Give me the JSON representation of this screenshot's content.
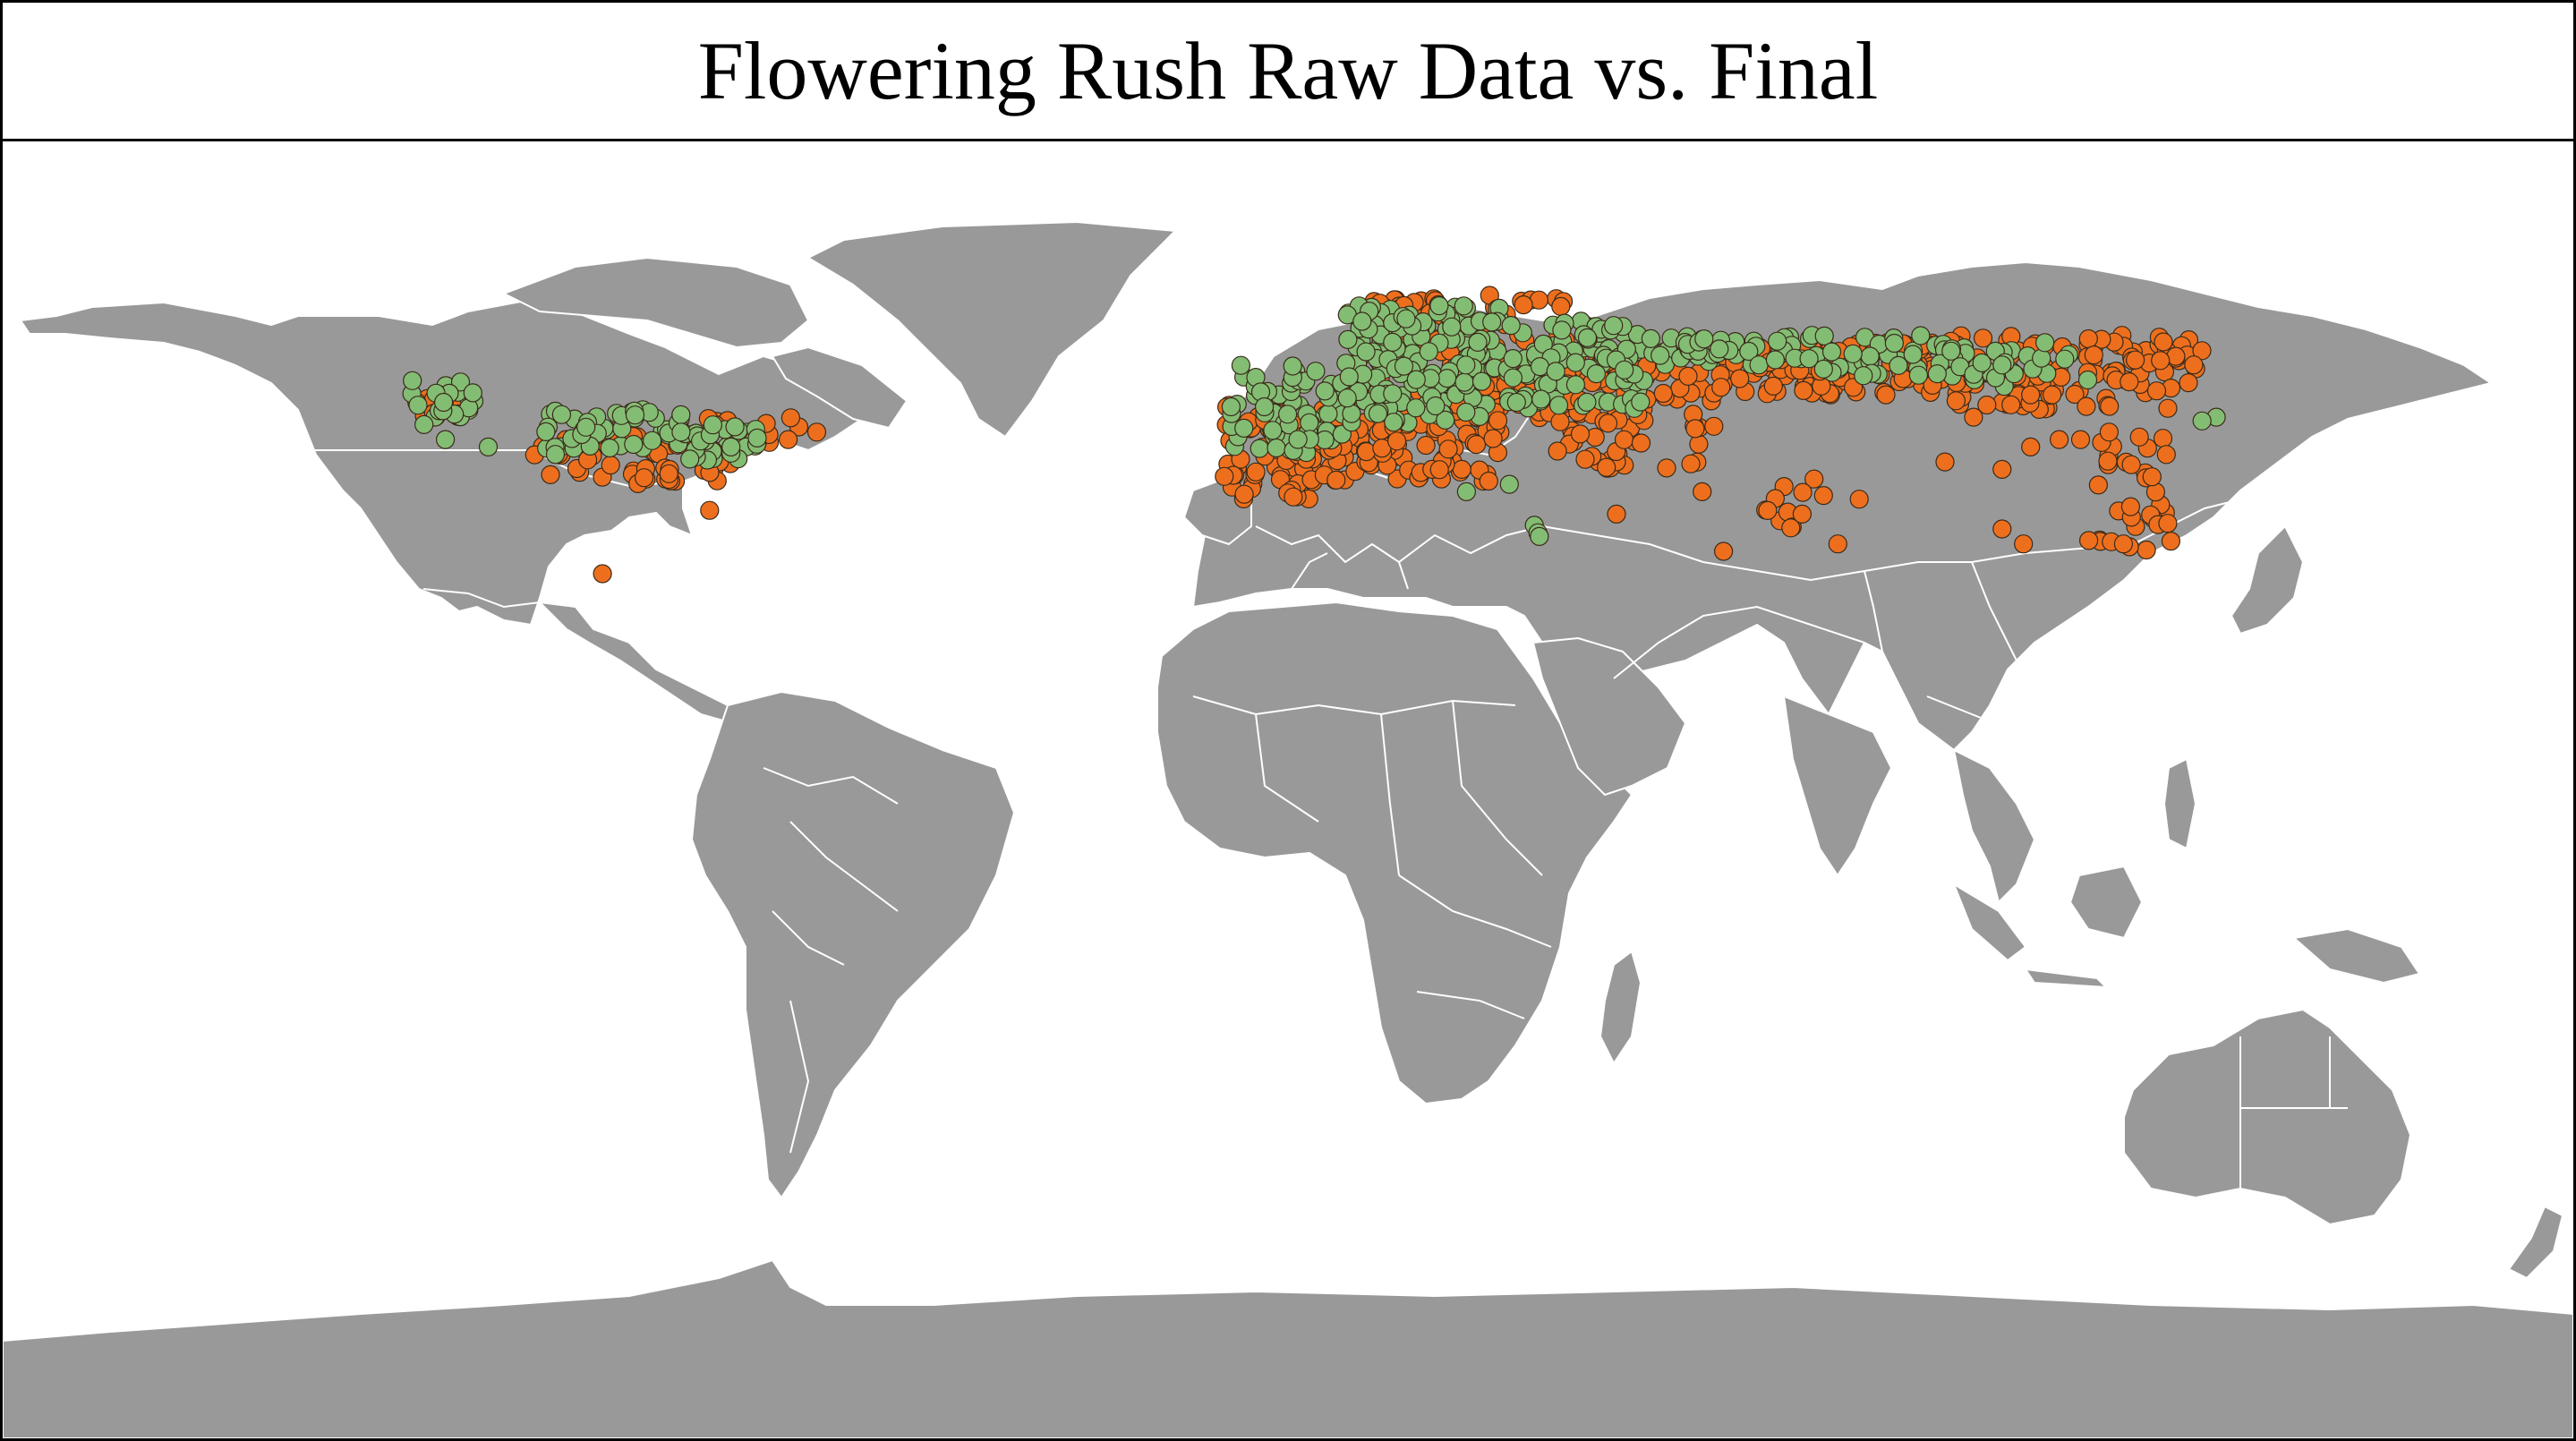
{
  "title": "Flowering Rush Raw Data vs. Final",
  "colors": {
    "land": "#999999",
    "borders": "#ffffff",
    "ocean": "#ffffff",
    "raw_points": "#ed6f1d",
    "final_points": "#83bd74",
    "point_outline": "#3a2a1a"
  },
  "map": {
    "projection": "plate-carree",
    "extent": {
      "lon": [
        -180,
        180
      ],
      "lat": [
        -90,
        84
      ]
    },
    "layers": [
      {
        "name": "Raw Data",
        "color_key": "raw_points"
      },
      {
        "name": "Final",
        "color_key": "final_points"
      }
    ]
  },
  "chart_data": {
    "type": "scatter",
    "x_unit": "longitude (degrees)",
    "y_unit": "latitude (degrees)",
    "series": [
      {
        "color_key": "raw_points",
        "clusters": [
          {
            "lon": [
              -121,
              -116
            ],
            "lat": [
              47,
              50
            ],
            "count": 10
          },
          {
            "lon": [
              -106,
              -78
            ],
            "lat": [
              38,
              47
            ],
            "count": 45
          },
          {
            "lon": [
              -75,
              -68
            ],
            "lat": [
              43,
              47
            ],
            "count": 6
          },
          {
            "lon": [
              -92,
              -86
            ],
            "lat": [
              38,
              41
            ],
            "count": 8
          },
          {
            "lon": [
              -9,
              5
            ],
            "lat": [
              36,
              49
            ],
            "count": 70
          },
          {
            "lon": [
              5,
              30
            ],
            "lat": [
              38,
              50
            ],
            "count": 110
          },
          {
            "lon": [
              10,
              40
            ],
            "lat": [
              48,
              64
            ],
            "count": 120
          },
          {
            "lon": [
              35,
              60
            ],
            "lat": [
              40,
              56
            ],
            "count": 90
          },
          {
            "lon": [
              60,
              92
            ],
            "lat": [
              50,
              57
            ],
            "count": 110
          },
          {
            "lon": [
              92,
              128
            ],
            "lat": [
              48,
              58
            ],
            "count": 110
          },
          {
            "lon": [
              112,
              124
            ],
            "lat": [
              28,
              45
            ],
            "count": 30
          },
          {
            "lon": [
              66,
              74
            ],
            "lat": [
              32,
              40
            ],
            "count": 10
          }
        ],
        "points": [
          [
            -81,
            34.5
          ],
          [
            -96,
            26
          ],
          [
            -122,
            49
          ],
          [
            -70,
            44
          ],
          [
            -66,
            45
          ],
          [
            61,
            29
          ],
          [
            58,
            37
          ],
          [
            46,
            34
          ],
          [
            77,
            30
          ],
          [
            75,
            36.5
          ],
          [
            72,
            34
          ],
          [
            80,
            36
          ],
          [
            92,
            41
          ],
          [
            96,
            47
          ],
          [
            100,
            40
          ],
          [
            104,
            43
          ],
          [
            100,
            32
          ],
          [
            103,
            30
          ],
          [
            108,
            44
          ],
          [
            111,
            44
          ],
          [
            104,
            50
          ],
          [
            107,
            50
          ],
          [
            101,
            53
          ],
          [
            112,
            53
          ],
          [
            117,
            30
          ],
          [
            118,
            35
          ],
          [
            121,
            39
          ],
          [
            123,
            42
          ],
          [
            115,
            45
          ]
        ]
      },
      {
        "color_key": "final_points",
        "clusters": [
          {
            "lon": [
              -123,
              -114
            ],
            "lat": [
              47,
              52
            ],
            "count": 22
          },
          {
            "lon": [
              -104,
              -84
            ],
            "lat": [
              42,
              48
            ],
            "count": 45
          },
          {
            "lon": [
              -84,
              -74
            ],
            "lat": [
              41,
              46
            ],
            "count": 35
          },
          {
            "lon": [
              -8,
              8
            ],
            "lat": [
              42,
              54
            ],
            "count": 70
          },
          {
            "lon": [
              8,
              30
            ],
            "lat": [
              46,
              62
            ],
            "count": 160
          },
          {
            "lon": [
              30,
              50
            ],
            "lat": [
              48,
              60
            ],
            "count": 100
          },
          {
            "lon": [
              50,
              75
            ],
            "lat": [
              54,
              58
            ],
            "count": 50
          },
          {
            "lon": [
              75,
              95
            ],
            "lat": [
              52,
              58
            ],
            "count": 40
          },
          {
            "lon": [
              95,
              110
            ],
            "lat": [
              51,
              56
            ],
            "count": 20
          }
        ],
        "points": [
          [
            -112,
            43
          ],
          [
            -118,
            44
          ],
          [
            -121,
            46
          ],
          [
            -85,
            45
          ],
          [
            -78,
            43
          ],
          [
            34.5,
            32.5
          ],
          [
            35,
            31.5
          ],
          [
            35.2,
            31
          ],
          [
            31,
            38
          ],
          [
            25,
            37
          ],
          [
            130,
            47
          ],
          [
            128,
            46.5
          ],
          [
            106,
            57
          ],
          [
            100,
            54
          ],
          [
            112,
            52
          ]
        ]
      }
    ]
  }
}
